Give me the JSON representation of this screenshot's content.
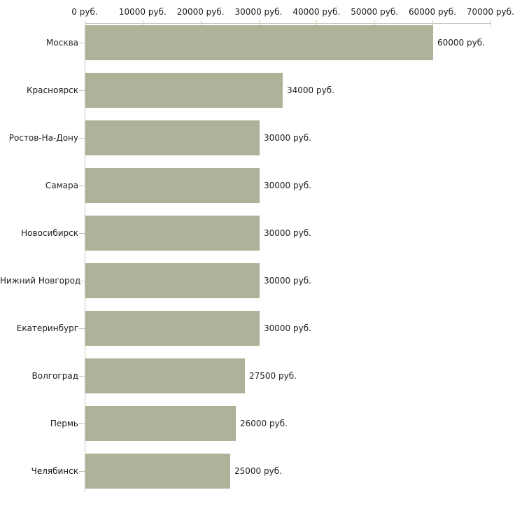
{
  "chart_data": {
    "type": "bar",
    "orientation": "horizontal",
    "title": "",
    "xlabel": "",
    "ylabel": "",
    "unit": "руб.",
    "xlim": [
      0,
      70000
    ],
    "grid": false,
    "legend": false,
    "categories": [
      "Москва",
      "Красноярск",
      "Ростов-На-Дону",
      "Самара",
      "Новосибирск",
      "Нижний Новгород",
      "Екатеринбург",
      "Волгоград",
      "Пермь",
      "Челябинск"
    ],
    "values": [
      60000,
      34000,
      30000,
      30000,
      30000,
      30000,
      30000,
      27500,
      26000,
      25000
    ],
    "bar_labels": [
      "60000 руб.",
      "34000 руб.",
      "30000 руб.",
      "30000 руб.",
      "30000 руб.",
      "30000 руб.",
      "30000 руб.",
      "27500 руб.",
      "26000 руб.",
      "25000 руб."
    ],
    "x_ticks": [
      {
        "value": 0,
        "label": "0 руб."
      },
      {
        "value": 10000,
        "label": "10000 руб."
      },
      {
        "value": 20000,
        "label": "20000 руб."
      },
      {
        "value": 30000,
        "label": "30000 руб."
      },
      {
        "value": 40000,
        "label": "40000 руб."
      },
      {
        "value": 50000,
        "label": "50000 руб."
      },
      {
        "value": 60000,
        "label": "60000 руб."
      },
      {
        "value": 70000,
        "label": "70000 руб."
      }
    ],
    "colors": {
      "bar": "#adb399",
      "axis_line": "#c6c6bc",
      "x_tick_mark": "#cbcdae",
      "cat_tick_mark": "#bfc1a6",
      "text": "#1c1c1c"
    }
  }
}
